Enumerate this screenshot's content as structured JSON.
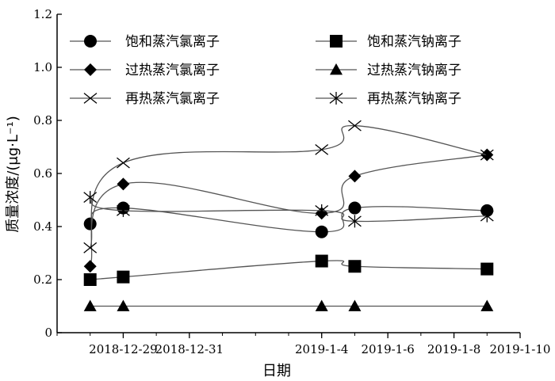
{
  "chart_data": {
    "type": "line",
    "xlabel": "日期",
    "ylabel": "质量浓度/(μg·L⁻¹)",
    "x_axis": {
      "type": "date",
      "range": [
        "2018-12-27",
        "2019-01-10"
      ],
      "tick_values": [
        "2018-12-29",
        "2018-12-31",
        "2019-01-04",
        "2019-01-06",
        "2019-01-08",
        "2019-01-10"
      ],
      "tick_labels": [
        "2018-12-29",
        "2018-12-31",
        "2019-1-4",
        "2019-1-6",
        "2019-1-8",
        "2019-1-10"
      ]
    },
    "y_axis": {
      "range": [
        0,
        1.2
      ],
      "tick_values": [
        0,
        0.2,
        0.4,
        0.6,
        0.8,
        1.0,
        1.2
      ],
      "tick_labels": [
        "0",
        "0.2",
        "0.4",
        "0.6",
        "0.8",
        "1.0",
        "1.2"
      ]
    },
    "grid": false,
    "legend_position": "top",
    "series": [
      {
        "name": "饱和蒸汽氯离子",
        "marker": "circle",
        "x": [
          "2018-12-28",
          "2018-12-29",
          "2019-01-04",
          "2019-01-05",
          "2019-01-09"
        ],
        "y": [
          0.41,
          0.47,
          0.38,
          0.47,
          0.46
        ]
      },
      {
        "name": "饱和蒸汽钠离子",
        "marker": "square",
        "x": [
          "2018-12-28",
          "2018-12-29",
          "2019-01-04",
          "2019-01-05",
          "2019-01-09"
        ],
        "y": [
          0.2,
          0.21,
          0.27,
          0.25,
          0.24
        ]
      },
      {
        "name": "过热蒸汽氯离子",
        "marker": "diamond",
        "x": [
          "2018-12-28",
          "2018-12-29",
          "2019-01-04",
          "2019-01-05",
          "2019-01-09"
        ],
        "y": [
          0.25,
          0.56,
          0.45,
          0.59,
          0.67
        ]
      },
      {
        "name": "过热蒸汽钠离子",
        "marker": "triangle",
        "x": [
          "2018-12-28",
          "2018-12-29",
          "2019-01-04",
          "2019-01-05",
          "2019-01-09"
        ],
        "y": [
          0.1,
          0.1,
          0.1,
          0.1,
          0.1
        ]
      },
      {
        "name": "再热蒸汽氯离子",
        "marker": "x",
        "x": [
          "2018-12-28",
          "2018-12-29",
          "2019-01-04",
          "2019-01-05",
          "2019-01-09"
        ],
        "y": [
          0.32,
          0.64,
          0.69,
          0.78,
          0.67
        ]
      },
      {
        "name": "再热蒸汽钠离子",
        "marker": "asterisk",
        "x": [
          "2018-12-28",
          "2018-12-29",
          "2019-01-04",
          "2019-01-05",
          "2019-01-09"
        ],
        "y": [
          0.51,
          0.46,
          0.46,
          0.42,
          0.44
        ]
      }
    ]
  }
}
